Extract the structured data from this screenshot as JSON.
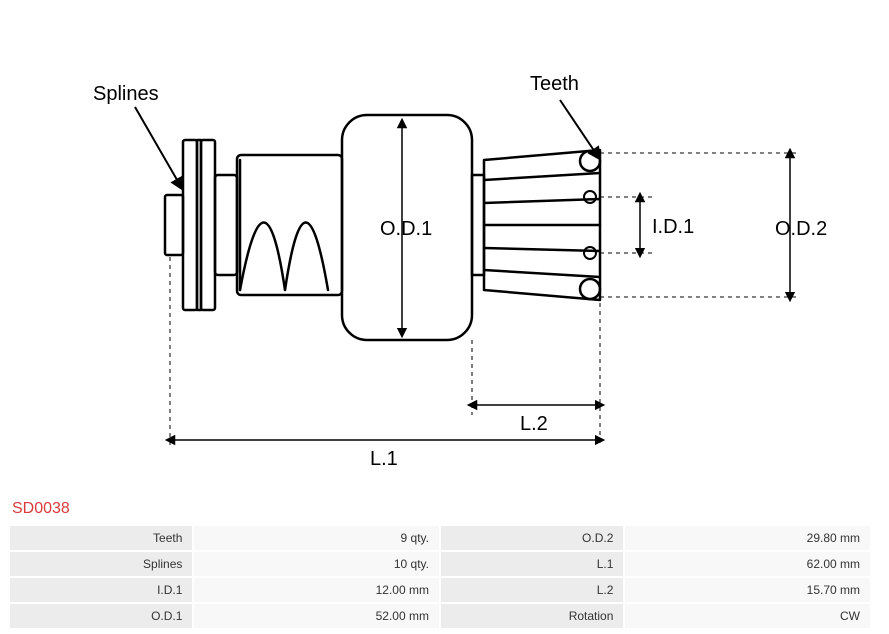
{
  "part_code": "SD0038",
  "diagram": {
    "labels": {
      "splines": "Splines",
      "teeth": "Teeth",
      "od1": "O.D.1",
      "od2": "O.D.2",
      "id1": "I.D.1",
      "l1": "L.1",
      "l2": "L.2"
    },
    "style": {
      "stroke_color": "#000000",
      "stroke_width_main": 2.5,
      "stroke_width_dim": 1.2,
      "dash_pattern": "4,4",
      "font_size": 20,
      "background": "#ffffff"
    }
  },
  "spec_rows": [
    {
      "l1": "Teeth",
      "v1": "9 qty.",
      "l2": "O.D.2",
      "v2": "29.80 mm"
    },
    {
      "l1": "Splines",
      "v1": "10 qty.",
      "l2": "L.1",
      "v2": "62.00 mm"
    },
    {
      "l1": "I.D.1",
      "v1": "12.00 mm",
      "l2": "L.2",
      "v2": "15.70 mm"
    },
    {
      "l1": "O.D.1",
      "v1": "52.00 mm",
      "l2": "Rotation",
      "v2": "CW"
    }
  ],
  "colors": {
    "part_code": "#d93a3a",
    "label_bg": "#ececec",
    "value_bg": "#f8f8f8",
    "text": "#333333"
  }
}
